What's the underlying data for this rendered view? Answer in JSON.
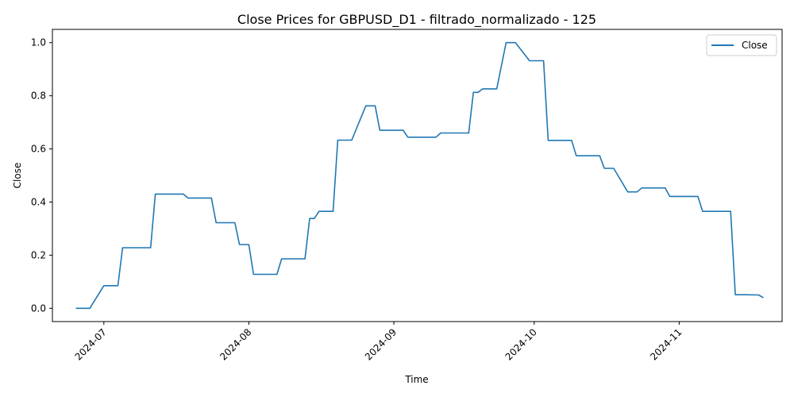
{
  "chart_data": {
    "type": "line",
    "title": "Close Prices for GBPUSD_D1 - filtrado_normalizado - 125",
    "xlabel": "Time",
    "ylabel": "Close",
    "x_tick_labels": [
      "2024-07",
      "2024-08",
      "2024-09",
      "2024-10",
      "2024-11"
    ],
    "y_ticks": [
      0.0,
      0.2,
      0.4,
      0.6,
      0.8,
      1.0
    ],
    "y_tick_labels": [
      "0.0",
      "0.2",
      "0.4",
      "0.6",
      "0.8",
      "1.0"
    ],
    "xlim": [
      "2024-06-20",
      "2024-11-23"
    ],
    "ylim": [
      -0.05,
      1.05
    ],
    "grid": false,
    "legend": {
      "position": "top-right",
      "entries": [
        "Close"
      ]
    },
    "series": [
      {
        "name": "Close",
        "color": "#1f77b4",
        "x": [
          "2024-06-25",
          "2024-06-26",
          "2024-06-27",
          "2024-06-28",
          "2024-07-01",
          "2024-07-02",
          "2024-07-03",
          "2024-07-04",
          "2024-07-05",
          "2024-07-08",
          "2024-07-09",
          "2024-07-10",
          "2024-07-11",
          "2024-07-12",
          "2024-07-15",
          "2024-07-16",
          "2024-07-17",
          "2024-07-18",
          "2024-07-19",
          "2024-07-22",
          "2024-07-23",
          "2024-07-24",
          "2024-07-25",
          "2024-07-26",
          "2024-07-29",
          "2024-07-30",
          "2024-07-31",
          "2024-08-01",
          "2024-08-02",
          "2024-08-05",
          "2024-08-06",
          "2024-08-07",
          "2024-08-08",
          "2024-08-09",
          "2024-08-12",
          "2024-08-13",
          "2024-08-14",
          "2024-08-15",
          "2024-08-16",
          "2024-08-19",
          "2024-08-20",
          "2024-08-21",
          "2024-08-22",
          "2024-08-23",
          "2024-08-26",
          "2024-08-27",
          "2024-08-28",
          "2024-08-29",
          "2024-08-30",
          "2024-09-02",
          "2024-09-03",
          "2024-09-04",
          "2024-09-05",
          "2024-09-06",
          "2024-09-09",
          "2024-09-10",
          "2024-09-11",
          "2024-09-12",
          "2024-09-13",
          "2024-09-16",
          "2024-09-17",
          "2024-09-18",
          "2024-09-19",
          "2024-09-20",
          "2024-09-23",
          "2024-09-24",
          "2024-09-25",
          "2024-09-26",
          "2024-09-27",
          "2024-09-30",
          "2024-10-01",
          "2024-10-02",
          "2024-10-03",
          "2024-10-04",
          "2024-10-07",
          "2024-10-08",
          "2024-10-09",
          "2024-10-10",
          "2024-10-11",
          "2024-10-14",
          "2024-10-15",
          "2024-10-16",
          "2024-10-17",
          "2024-10-18",
          "2024-10-21",
          "2024-10-22",
          "2024-10-23",
          "2024-10-24",
          "2024-10-25",
          "2024-10-28",
          "2024-10-29",
          "2024-10-30",
          "2024-10-31",
          "2024-11-01",
          "2024-11-04",
          "2024-11-05",
          "2024-11-06",
          "2024-11-07",
          "2024-11-08",
          "2024-11-11",
          "2024-11-12",
          "2024-11-13",
          "2024-11-14",
          "2024-11-15",
          "2024-11-18",
          "2024-11-19"
        ],
        "y": [
          0.0,
          0.0,
          0.0,
          0.0,
          0.085,
          0.085,
          0.085,
          0.085,
          0.228,
          0.228,
          0.228,
          0.228,
          0.228,
          0.43,
          0.43,
          0.43,
          0.43,
          0.43,
          0.415,
          0.415,
          0.415,
          0.415,
          0.322,
          0.322,
          0.322,
          0.24,
          0.24,
          0.24,
          0.128,
          0.128,
          0.128,
          0.128,
          0.186,
          0.186,
          0.186,
          0.186,
          0.338,
          0.338,
          0.365,
          0.365,
          0.633,
          0.633,
          0.633,
          0.633,
          0.762,
          0.762,
          0.762,
          0.67,
          0.67,
          0.67,
          0.67,
          0.644,
          0.644,
          0.644,
          0.644,
          0.644,
          0.66,
          0.66,
          0.66,
          0.66,
          0.66,
          0.813,
          0.813,
          0.826,
          0.826,
          0.913,
          1.0,
          1.0,
          1.0,
          0.932,
          0.932,
          0.932,
          0.932,
          0.632,
          0.632,
          0.632,
          0.632,
          0.574,
          0.574,
          0.574,
          0.574,
          0.527,
          0.527,
          0.527,
          0.438,
          0.438,
          0.438,
          0.453,
          0.453,
          0.453,
          0.453,
          0.421,
          0.421,
          0.421,
          0.421,
          0.421,
          0.365,
          0.365,
          0.365,
          0.365,
          0.365,
          0.051,
          0.051,
          0.051,
          0.05,
          0.04
        ]
      }
    ]
  }
}
